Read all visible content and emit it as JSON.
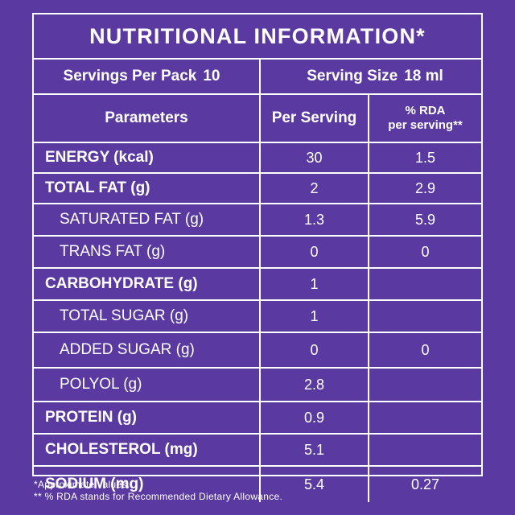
{
  "title": "NUTRITIONAL INFORMATION*",
  "servings": {
    "per_pack_label": "Servings Per Pack",
    "per_pack_value": "10",
    "size_label": "Serving Size",
    "size_value": "18 ml"
  },
  "headers": {
    "parameters": "Parameters",
    "per_serving": "Per Serving",
    "rda_line1": "% RDA",
    "rda_line2": "per serving**"
  },
  "rows": [
    {
      "name": "ENERGY (kcal)",
      "per_serving": "30",
      "rda": "1.5"
    },
    {
      "name": "TOTAL FAT (g)",
      "per_serving": "2",
      "rda": "2.9"
    },
    {
      "name": "SATURATED FAT (g)",
      "per_serving": "1.3",
      "rda": "5.9"
    },
    {
      "name": "TRANS FAT (g)",
      "per_serving": "0",
      "rda": "0"
    },
    {
      "name": "CARBOHYDRATE (g)",
      "per_serving": "1",
      "rda": ""
    },
    {
      "name": "TOTAL SUGAR (g)",
      "per_serving": "1",
      "rda": ""
    },
    {
      "name": "ADDED SUGAR (g)",
      "per_serving": "0",
      "rda": "0"
    },
    {
      "name": "POLYOL (g)",
      "per_serving": "2.8",
      "rda": ""
    },
    {
      "name": "PROTEIN (g)",
      "per_serving": "0.9",
      "rda": ""
    },
    {
      "name": "CHOLESTEROL (mg)",
      "per_serving": "5.1",
      "rda": ""
    },
    {
      "name": "SODIUM (mg)",
      "per_serving": "5.4",
      "rda": "0.27"
    }
  ],
  "footnotes": {
    "line1": "*Approximate values.",
    "line2": "** % RDA stands for Recommended Dietary Allowance."
  },
  "colors": {
    "background": "#5a3aa0",
    "text": "#ffffff"
  }
}
